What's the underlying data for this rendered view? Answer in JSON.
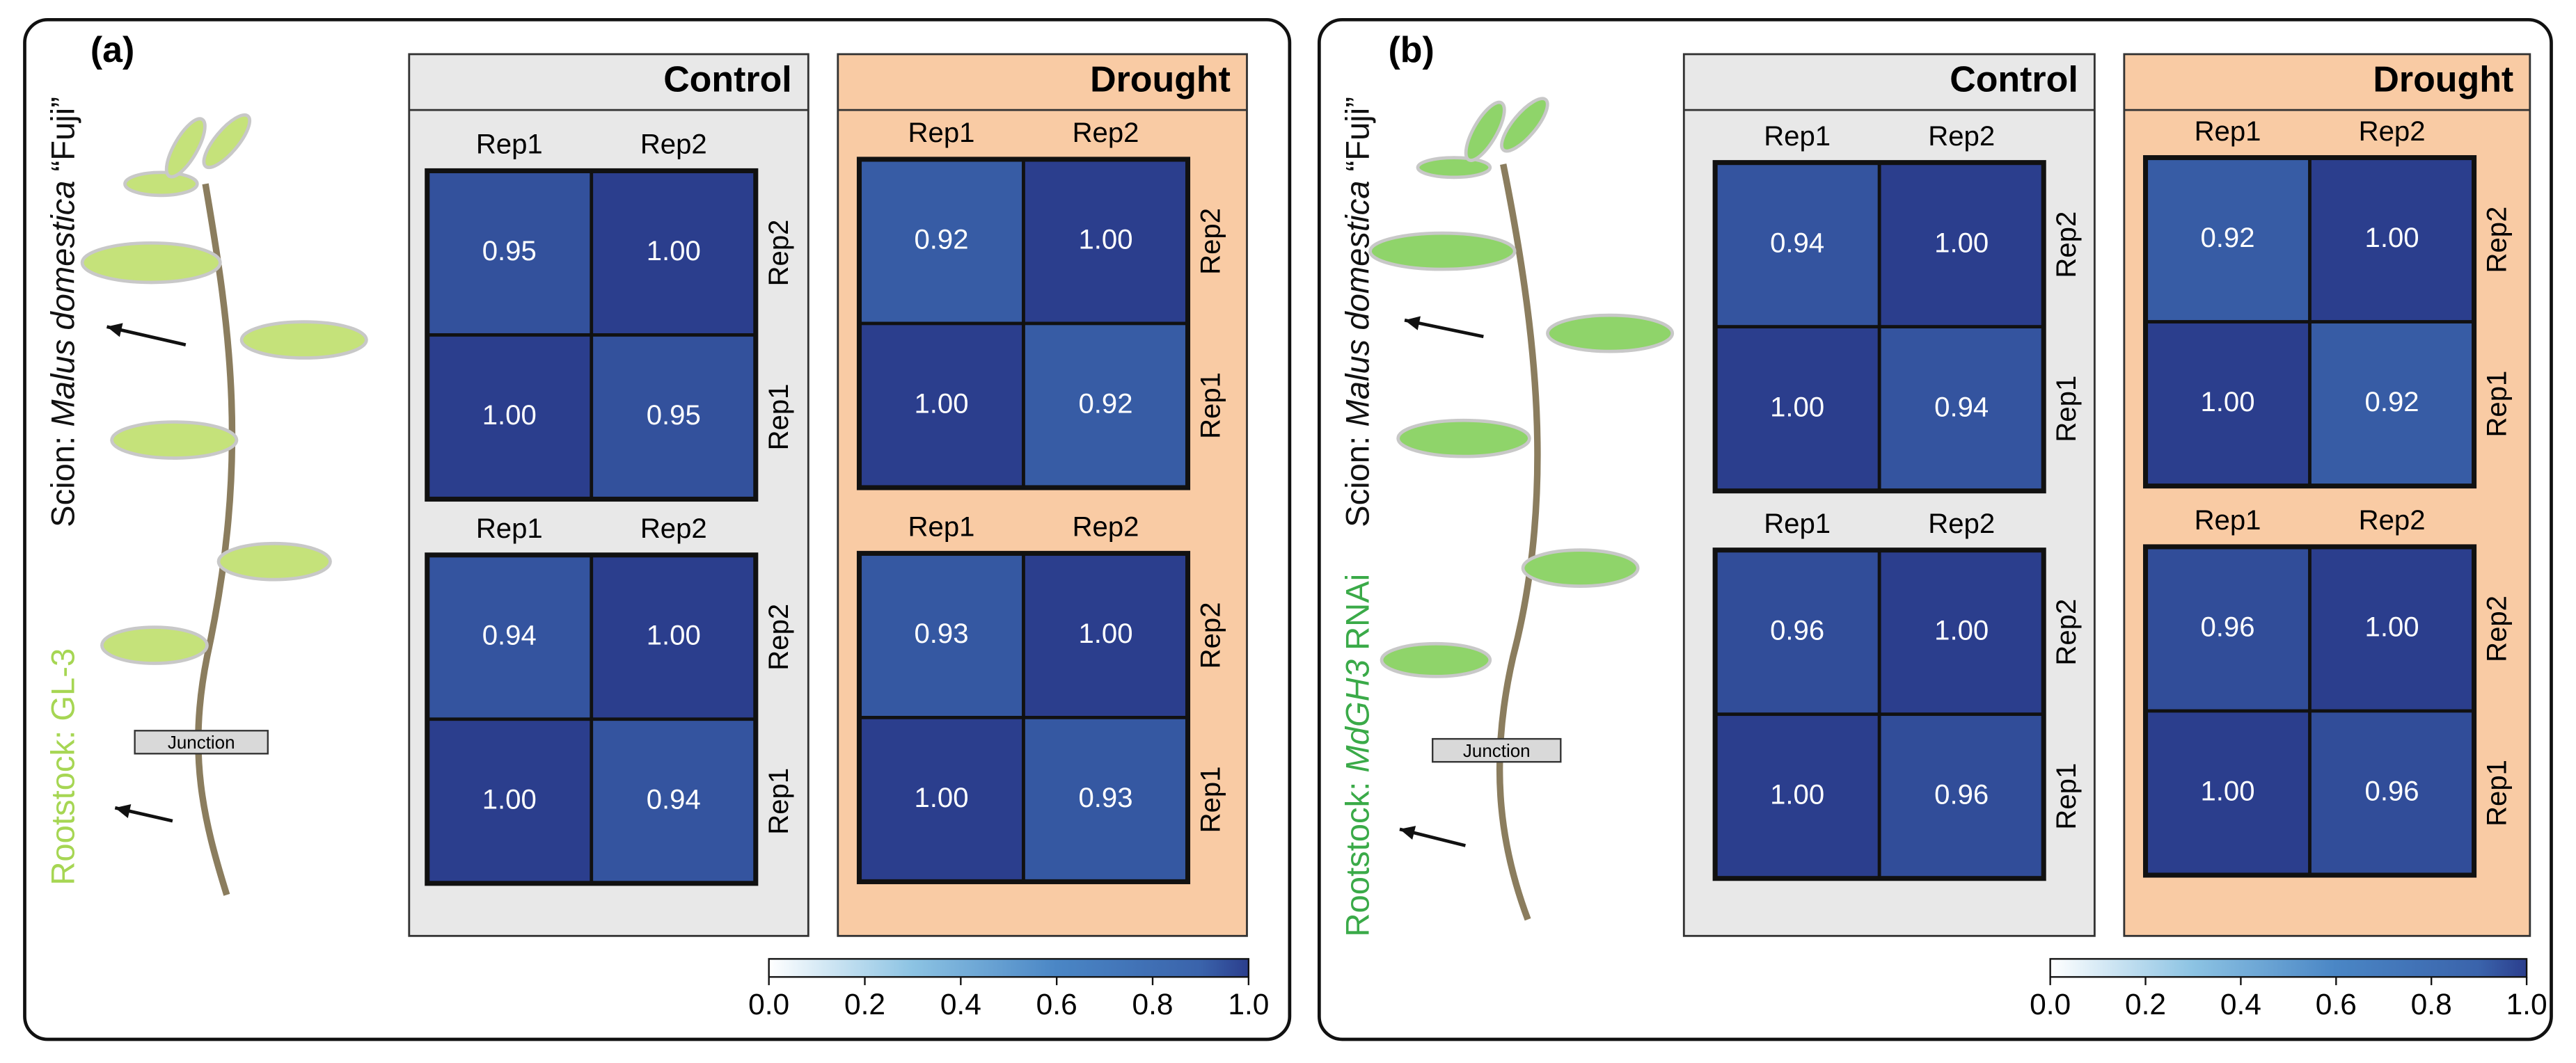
{
  "colormap": [
    [
      0,
      "#ffffff"
    ],
    [
      0.3,
      "#8cc3e3"
    ],
    [
      0.6,
      "#4a86c5"
    ],
    [
      0.9,
      "#3a63ab"
    ],
    [
      1,
      "#2b3e8d"
    ]
  ],
  "panels": [
    {
      "label": "(a)",
      "scion": [
        {
          "text": "Scion: "
        },
        {
          "text": "Malus domestica",
          "italic": true
        },
        {
          "text": " “Fuji”"
        }
      ],
      "rootstock": [
        {
          "text": "Rootstock: "
        },
        {
          "text": "GL-3"
        }
      ],
      "rootstock_color": "#a6d653",
      "leaf_color": "#c5e27a",
      "junction": "Junction",
      "conditions": [
        {
          "name": "Control",
          "color": "#e8e8e8",
          "heatmaps": [
            {
              "type": "heatmap",
              "x": [
                "Rep1",
                "Rep2"
              ],
              "y": [
                "Rep2",
                "Rep1"
              ],
              "values": [
                [
                  0.95,
                  1
                ],
                [
                  1,
                  0.95
                ]
              ],
              "value_labels": [
                [
                  "0.95",
                  "1.00"
                ],
                [
                  "1.00",
                  "0.95"
                ]
              ]
            },
            {
              "type": "heatmap",
              "x": [
                "Rep1",
                "Rep2"
              ],
              "y": [
                "Rep2",
                "Rep1"
              ],
              "values": [
                [
                  0.94,
                  1
                ],
                [
                  1,
                  0.94
                ]
              ],
              "value_labels": [
                [
                  "0.94",
                  "1.00"
                ],
                [
                  "1.00",
                  "0.94"
                ]
              ]
            }
          ]
        },
        {
          "name": "Drought",
          "color": "#f9cba4",
          "heatmaps": [
            {
              "type": "heatmap",
              "x": [
                "Rep1",
                "Rep2"
              ],
              "y": [
                "Rep2",
                "Rep1"
              ],
              "values": [
                [
                  0.92,
                  1
                ],
                [
                  1,
                  0.92
                ]
              ],
              "value_labels": [
                [
                  "0.92",
                  "1.00"
                ],
                [
                  "1.00",
                  "0.92"
                ]
              ]
            },
            {
              "type": "heatmap",
              "x": [
                "Rep1",
                "Rep2"
              ],
              "y": [
                "Rep2",
                "Rep1"
              ],
              "values": [
                [
                  0.93,
                  1
                ],
                [
                  1,
                  0.93
                ]
              ],
              "value_labels": [
                [
                  "0.93",
                  "1.00"
                ],
                [
                  "1.00",
                  "0.93"
                ]
              ]
            }
          ]
        }
      ],
      "colorbar": {
        "lim": [
          0,
          1
        ],
        "ticks": [
          {
            "value": 0,
            "label": "0.0"
          },
          0.2,
          0.4,
          0.6,
          0.8,
          {
            "value": 1,
            "label": "1.0"
          }
        ]
      }
    },
    {
      "label": "(b)",
      "scion": [
        {
          "text": "Scion: "
        },
        {
          "text": "Malus domestica",
          "italic": true
        },
        {
          "text": " “Fuji”"
        }
      ],
      "rootstock": [
        {
          "text": "Rootstock: "
        },
        {
          "text": "MdGH3",
          "italic": true
        },
        {
          "text": " RNAi"
        }
      ],
      "rootstock_color": "#3aaa48",
      "leaf_color": "#8fd46a",
      "junction": "Junction",
      "conditions": [
        {
          "name": "Control",
          "color": "#e8e8e8",
          "heatmaps": [
            {
              "type": "heatmap",
              "x": [
                "Rep1",
                "Rep2"
              ],
              "y": [
                "Rep2",
                "Rep1"
              ],
              "values": [
                [
                  0.94,
                  1
                ],
                [
                  1,
                  0.94
                ]
              ],
              "value_labels": [
                [
                  "0.94",
                  "1.00"
                ],
                [
                  "1.00",
                  "0.94"
                ]
              ]
            },
            {
              "type": "heatmap",
              "x": [
                "Rep1",
                "Rep2"
              ],
              "y": [
                "Rep2",
                "Rep1"
              ],
              "values": [
                [
                  0.96,
                  1
                ],
                [
                  1,
                  0.96
                ]
              ],
              "value_labels": [
                [
                  "0.96",
                  "1.00"
                ],
                [
                  "1.00",
                  "0.96"
                ]
              ]
            }
          ]
        },
        {
          "name": "Drought",
          "color": "#f9cba4",
          "heatmaps": [
            {
              "type": "heatmap",
              "x": [
                "Rep1",
                "Rep2"
              ],
              "y": [
                "Rep2",
                "Rep1"
              ],
              "values": [
                [
                  0.92,
                  1
                ],
                [
                  1,
                  0.92
                ]
              ],
              "value_labels": [
                [
                  "0.92",
                  "1.00"
                ],
                [
                  "1.00",
                  "0.92"
                ]
              ]
            },
            {
              "type": "heatmap",
              "x": [
                "Rep1",
                "Rep2"
              ],
              "y": [
                "Rep2",
                "Rep1"
              ],
              "values": [
                [
                  0.96,
                  1
                ],
                [
                  1,
                  0.96
                ]
              ],
              "value_labels": [
                [
                  "0.96",
                  "1.00"
                ],
                [
                  "1.00",
                  "0.96"
                ]
              ]
            }
          ]
        }
      ],
      "colorbar": {
        "lim": [
          0,
          1
        ],
        "ticks": [
          {
            "value": 0,
            "label": "0.0"
          },
          0.2,
          0.4,
          0.6,
          0.8,
          {
            "value": 1,
            "label": "1.0"
          }
        ]
      }
    }
  ]
}
